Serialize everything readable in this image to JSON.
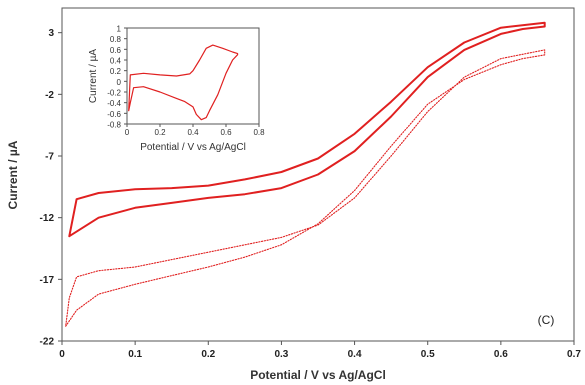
{
  "chart_data": [
    {
      "type": "line",
      "panel_label": "(C)",
      "xlabel": "Potential  / V vs Ag/AgCl",
      "ylabel": "Current / µA",
      "xlim": [
        0,
        0.7
      ],
      "ylim": [
        -22,
        5
      ],
      "xticks": [
        "0",
        "0.1",
        "0.2",
        "0.3",
        "0.4",
        "0.5",
        "0.6",
        "0.7"
      ],
      "yticks": [
        "3",
        "-2",
        "-7",
        "-12",
        "-17",
        "-22"
      ],
      "grid": false,
      "series": [
        {
          "style": "solid",
          "color": "#e02020",
          "x": [
            0.01,
            0.05,
            0.1,
            0.15,
            0.2,
            0.25,
            0.3,
            0.35,
            0.4,
            0.45,
            0.5,
            0.55,
            0.6,
            0.63,
            0.66,
            0.66,
            0.6,
            0.55,
            0.5,
            0.45,
            0.4,
            0.35,
            0.3,
            0.25,
            0.2,
            0.15,
            0.1,
            0.05,
            0.02,
            0.01
          ],
          "y": [
            -13.5,
            -12.0,
            -11.2,
            -10.8,
            -10.4,
            -10.1,
            -9.6,
            -8.5,
            -6.6,
            -3.8,
            -0.6,
            1.6,
            2.9,
            3.3,
            3.5,
            3.8,
            3.4,
            2.2,
            0.2,
            -2.6,
            -5.2,
            -7.2,
            -8.3,
            -8.9,
            -9.4,
            -9.6,
            -9.7,
            -10.0,
            -10.5,
            -13.5
          ]
        },
        {
          "style": "dotted",
          "color": "#e02020",
          "x": [
            0.005,
            0.02,
            0.05,
            0.1,
            0.15,
            0.2,
            0.25,
            0.3,
            0.35,
            0.4,
            0.45,
            0.5,
            0.55,
            0.6,
            0.63,
            0.66,
            0.66,
            0.6,
            0.55,
            0.5,
            0.45,
            0.4,
            0.35,
            0.3,
            0.25,
            0.2,
            0.15,
            0.1,
            0.05,
            0.02,
            0.01,
            0.005
          ],
          "y": [
            -20.8,
            -19.5,
            -18.2,
            -17.4,
            -16.7,
            -16.0,
            -15.2,
            -14.2,
            -12.5,
            -9.8,
            -6.2,
            -2.8,
            -0.8,
            0.4,
            0.9,
            1.2,
            1.6,
            0.9,
            -0.6,
            -3.4,
            -7.0,
            -10.4,
            -12.6,
            -13.6,
            -14.2,
            -14.8,
            -15.4,
            -16.0,
            -16.3,
            -16.8,
            -18.5,
            -20.8
          ]
        }
      ]
    },
    {
      "type": "line",
      "role": "inset",
      "xlabel": "Potential / V vs Ag/AgCl",
      "ylabel": "Current / µA",
      "xlim": [
        0,
        0.8
      ],
      "ylim": [
        -0.8,
        1
      ],
      "xticks": [
        "0",
        "0.2",
        "0.4",
        "0.6",
        "0.8"
      ],
      "yticks": [
        "1",
        "0.8",
        "0.6",
        "0.4",
        "0.2",
        "0",
        "-0.2",
        "-0.4",
        "-0.6",
        "-0.8"
      ],
      "series": [
        {
          "style": "solid",
          "color": "#e02020",
          "x": [
            0.01,
            0.02,
            0.1,
            0.2,
            0.3,
            0.38,
            0.4,
            0.44,
            0.48,
            0.52,
            0.58,
            0.64,
            0.67,
            0.67,
            0.64,
            0.6,
            0.55,
            0.5,
            0.48,
            0.45,
            0.42,
            0.4,
            0.35,
            0.3,
            0.2,
            0.1,
            0.04,
            0.02,
            0.01
          ],
          "y": [
            -0.55,
            0.12,
            0.15,
            0.12,
            0.1,
            0.14,
            0.2,
            0.4,
            0.62,
            0.68,
            0.62,
            0.55,
            0.52,
            0.5,
            0.4,
            0.15,
            -0.25,
            -0.55,
            -0.68,
            -0.72,
            -0.62,
            -0.48,
            -0.38,
            -0.32,
            -0.2,
            -0.1,
            -0.12,
            -0.4,
            -0.55
          ]
        }
      ]
    }
  ]
}
